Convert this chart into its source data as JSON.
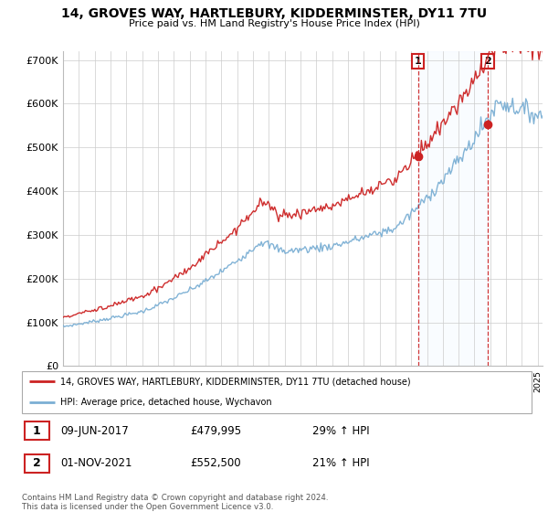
{
  "title1": "14, GROVES WAY, HARTLEBURY, KIDDERMINSTER, DY11 7TU",
  "title2": "Price paid vs. HM Land Registry's House Price Index (HPI)",
  "ylabel_ticks": [
    "£0",
    "£100K",
    "£200K",
    "£300K",
    "£400K",
    "£500K",
    "£600K",
    "£700K"
  ],
  "ytick_vals": [
    0,
    100000,
    200000,
    300000,
    400000,
    500000,
    600000,
    700000
  ],
  "ylim": [
    0,
    720000
  ],
  "sale1": {
    "date": "09-JUN-2017",
    "price": 479995,
    "pct": "29%",
    "label": "1",
    "year": 2017.44
  },
  "sale2": {
    "date": "01-NOV-2021",
    "price": 552500,
    "pct": "21%",
    "label": "2",
    "year": 2021.83
  },
  "hpi_color": "#7bafd4",
  "property_color": "#cc2222",
  "vline_color": "#cc2222",
  "legend_label1": "14, GROVES WAY, HARTLEBURY, KIDDERMINSTER, DY11 7TU (detached house)",
  "legend_label2": "HPI: Average price, detached house, Wychavon",
  "footer": "Contains HM Land Registry data © Crown copyright and database right 2024.\nThis data is licensed under the Open Government Licence v3.0.",
  "background_color": "#ffffff",
  "grid_color": "#cccccc",
  "span_color": "#ddeeff"
}
